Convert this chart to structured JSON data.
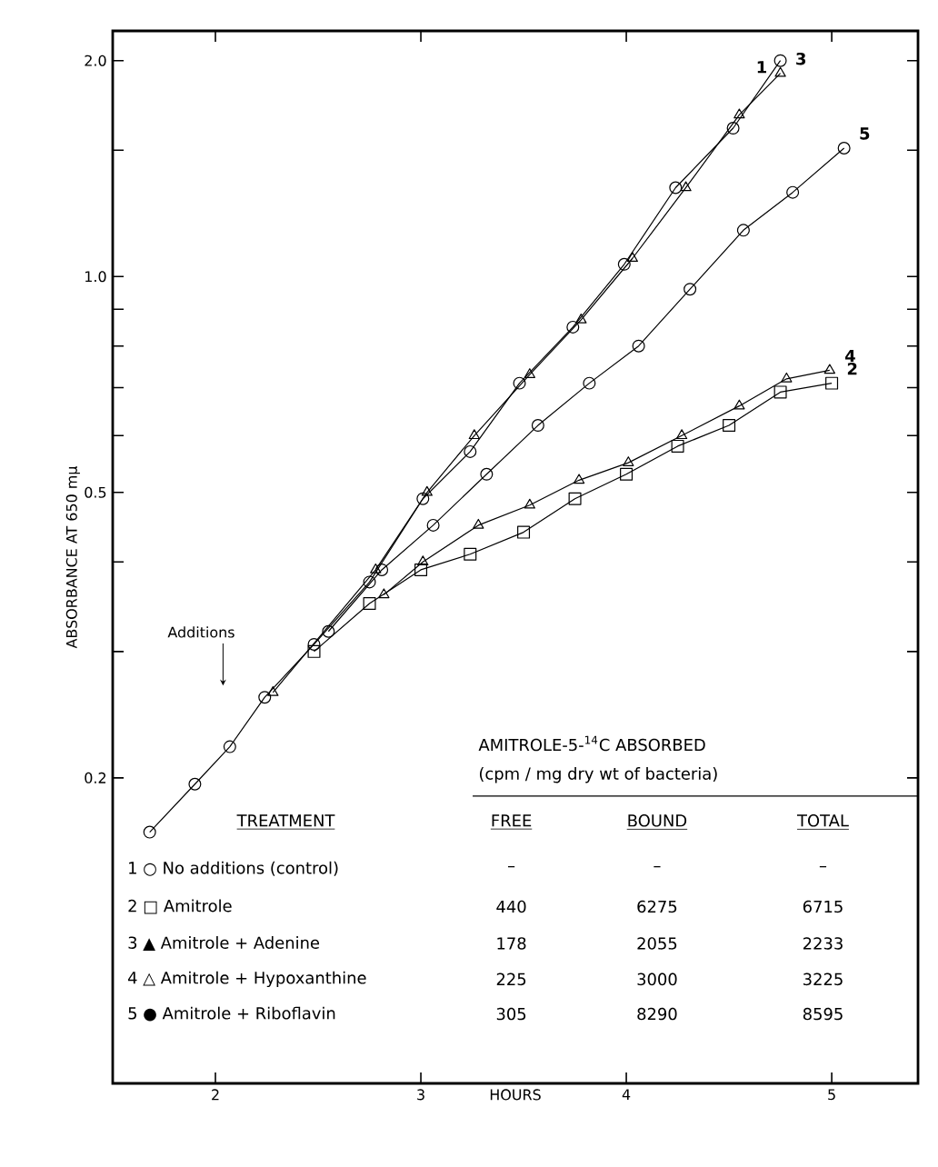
{
  "chart_data": {
    "type": "line",
    "xlabel": "HOURS",
    "ylabel": "ABSORBANCE AT 650 mμ",
    "log": "y",
    "grid": false,
    "line_style": "solid",
    "xlim": [
      1.5,
      5.42
    ],
    "ylim": [
      0.075,
      2.2
    ],
    "xticks": [
      2,
      3,
      4,
      5
    ],
    "yticks": [
      {
        "value": 0.2,
        "label": "0.2"
      },
      {
        "value": 0.3,
        "label": null
      },
      {
        "value": 0.4,
        "label": null
      },
      {
        "value": 0.5,
        "label": "0.5"
      },
      {
        "value": 0.6,
        "label": null
      },
      {
        "value": 0.7,
        "label": null
      },
      {
        "value": 0.8,
        "label": null
      },
      {
        "value": 0.9,
        "label": null
      },
      {
        "value": 1.0,
        "label": "1.0"
      },
      {
        "value": 1.5,
        "label": null
      },
      {
        "value": 2.0,
        "label": "2.0"
      }
    ],
    "series": [
      {
        "name": "1",
        "color": "#000000",
        "marker": "circle",
        "x": [
          1.68,
          1.9,
          2.07,
          2.24,
          2.48,
          2.75,
          3.01,
          3.24,
          3.48,
          3.74,
          3.99,
          4.24,
          4.52,
          4.75
        ],
        "values": [
          0.168,
          0.196,
          0.221,
          0.259,
          0.307,
          0.375,
          0.49,
          0.57,
          0.71,
          0.85,
          1.04,
          1.33,
          1.61,
          2.0
        ]
      },
      {
        "name": "2",
        "color": "#000000",
        "marker": "square",
        "x": [
          2.48,
          2.75,
          3.0,
          3.24,
          3.5,
          3.75,
          4.0,
          4.25,
          4.5,
          4.75,
          5.0
        ],
        "values": [
          0.3,
          0.35,
          0.39,
          0.41,
          0.44,
          0.49,
          0.53,
          0.58,
          0.62,
          0.69,
          0.71
        ]
      },
      {
        "name": "3",
        "color": "#000000",
        "marker": "triangle",
        "x": [
          2.28,
          2.78,
          3.03,
          3.26,
          3.53,
          3.78,
          4.03,
          4.29,
          4.55,
          4.75
        ],
        "values": [
          0.263,
          0.39,
          0.5,
          0.6,
          0.73,
          0.87,
          1.06,
          1.33,
          1.68,
          1.92
        ]
      },
      {
        "name": "4",
        "color": "#000000",
        "marker": "triangle",
        "x": [
          2.82,
          3.01,
          3.28,
          3.53,
          3.77,
          4.01,
          4.27,
          4.55,
          4.78,
          4.99
        ],
        "values": [
          0.36,
          0.4,
          0.45,
          0.48,
          0.52,
          0.55,
          0.6,
          0.66,
          0.72,
          0.74
        ]
      },
      {
        "name": "5",
        "color": "#000000",
        "marker": "circle",
        "x": [
          2.55,
          2.81,
          3.06,
          3.32,
          3.57,
          3.82,
          4.06,
          4.31,
          4.57,
          4.81,
          5.06
        ],
        "values": [
          0.32,
          0.39,
          0.45,
          0.53,
          0.62,
          0.71,
          0.8,
          0.96,
          1.16,
          1.31,
          1.51
        ]
      }
    ],
    "annotations": [
      "Additions",
      "AMITROLE-5-$^{14}$C  ABSORBED",
      "(cpm / mg dry wt of bacteria)",
      "TREATMENT",
      "FREE",
      "BOUND",
      "TOTAL",
      "1 ○ No additions (control)",
      "–",
      "–",
      "–",
      "2 □ Amitrole",
      "440",
      "6275",
      "6715",
      "3 ▲ Amitrole + Adenine",
      "178",
      "2055",
      "2233",
      "4 △ Amitrole + Hypoxanthine",
      "225",
      "3000",
      "3225",
      "5 ● Amitrole + Riboflavin",
      "305",
      "8290",
      "8595"
    ]
  }
}
